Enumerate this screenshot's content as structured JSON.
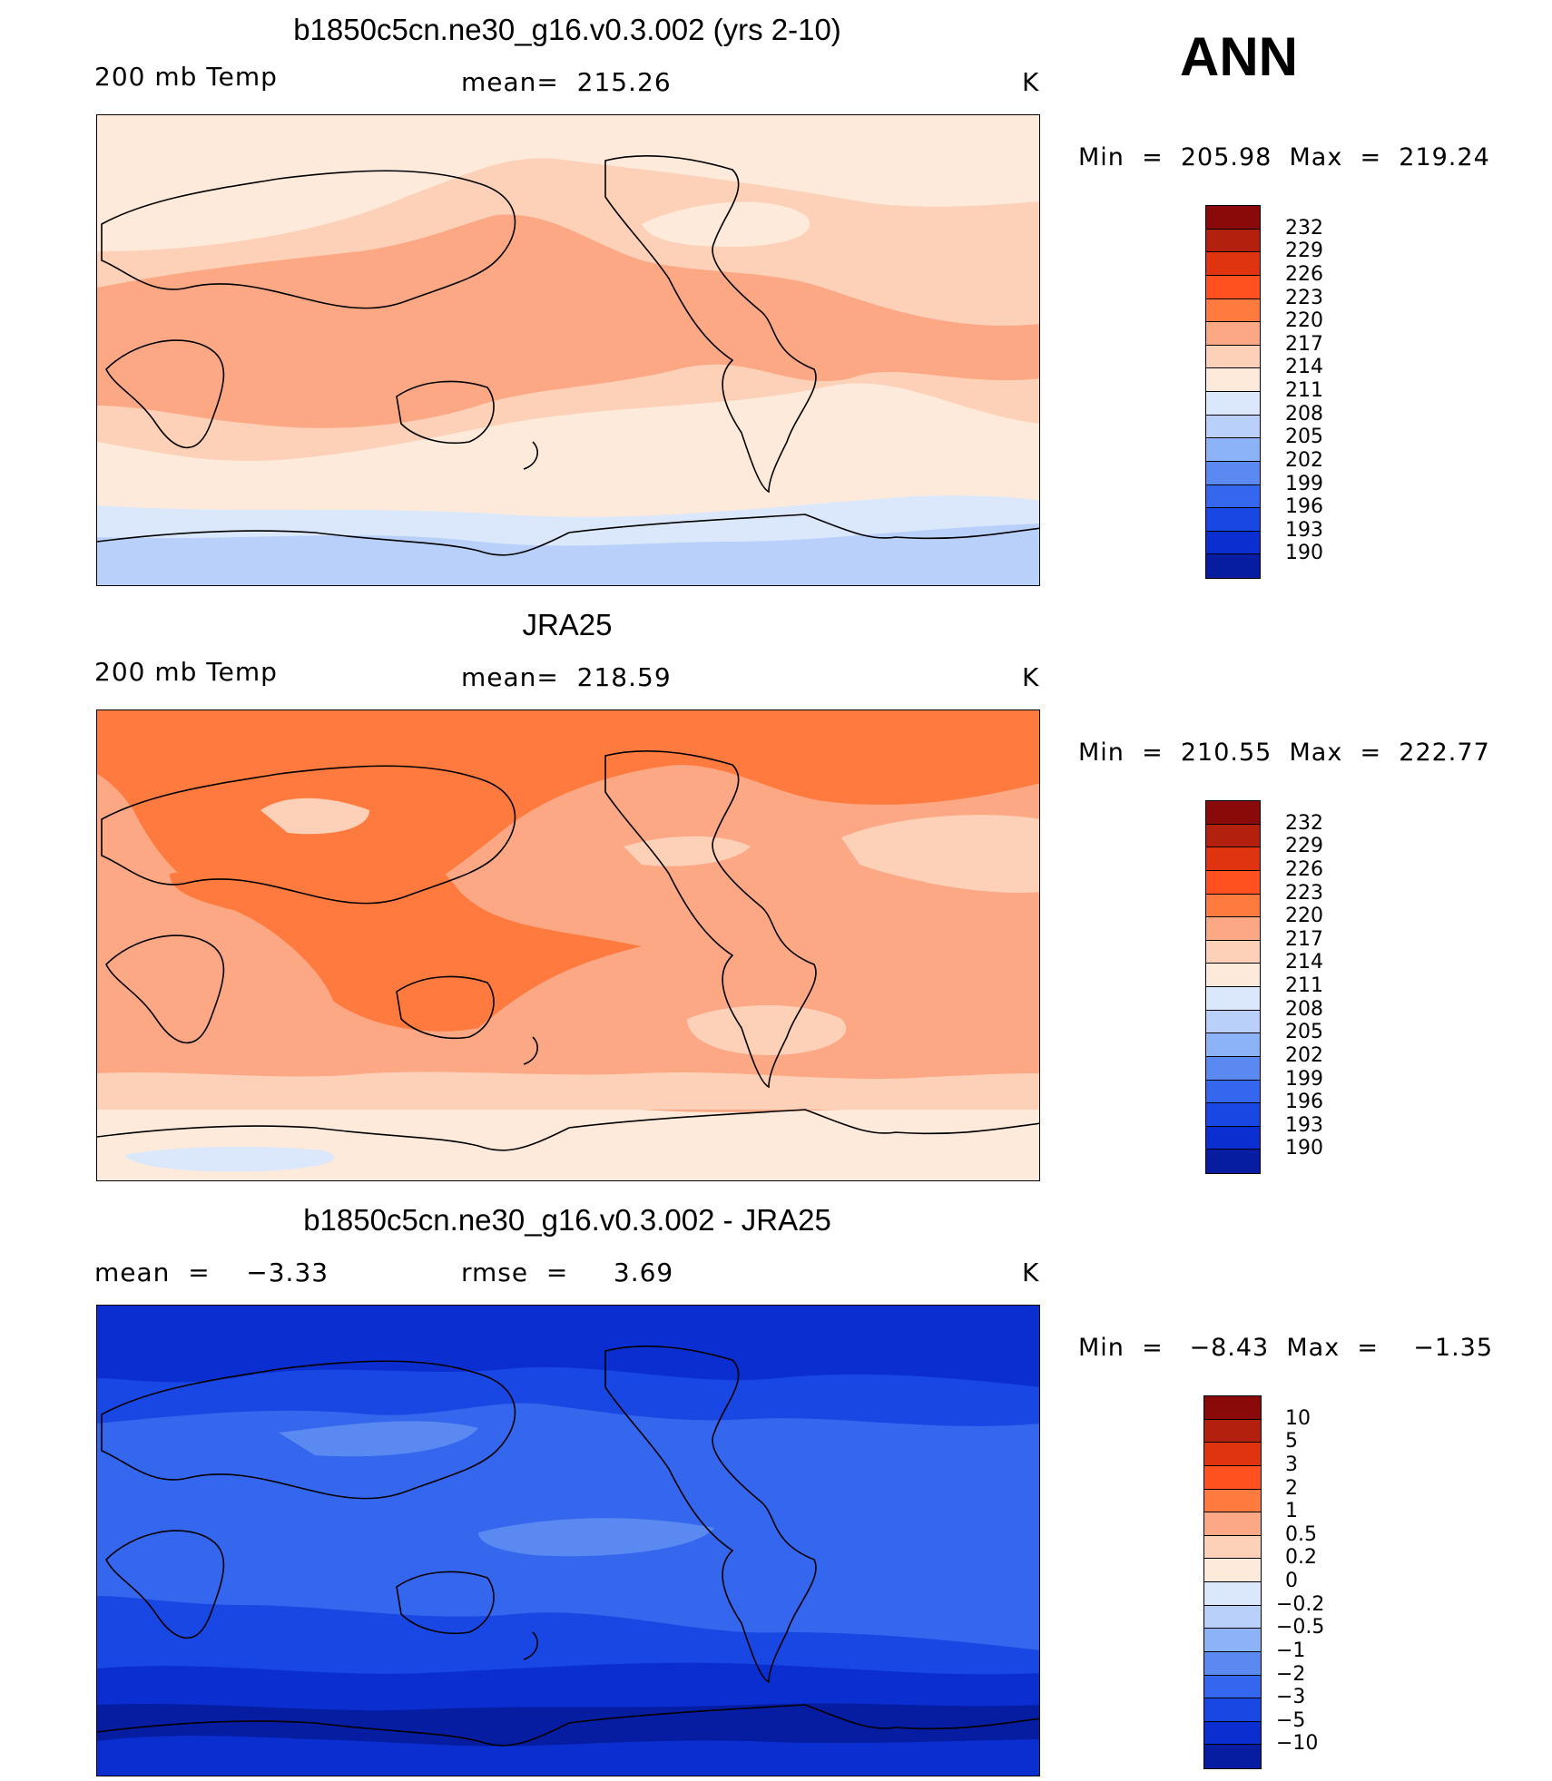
{
  "season": "ANN",
  "palette_abs": [
    "#8a0a0a",
    "#b3200d",
    "#e0330f",
    "#ff5020",
    "#ff7a3f",
    "#fca884",
    "#fdd0b8",
    "#fdeadb",
    "#dbe8fb",
    "#b9d0fa",
    "#8cb2f8",
    "#5a89f1",
    "#3566ee",
    "#1947e4",
    "#0a2ecf",
    "#061ca1"
  ],
  "palette_diff": [
    "#8a0a0a",
    "#b3200d",
    "#e0330f",
    "#ff5020",
    "#ff7a3f",
    "#fca884",
    "#fdd0b8",
    "#fdeadb",
    "#dbe8fb",
    "#b9d0fa",
    "#8cb2f8",
    "#5a89f1",
    "#3566ee",
    "#1947e4",
    "#0a2ecf",
    "#061ca1"
  ],
  "panels": [
    {
      "title": "b1850c5cn.ne30_g16.v0.3.002 (yrs 2-10)",
      "left_label": "200 mb Temp",
      "center_label": "mean=  215.26",
      "units": "K",
      "minmax": "Min  =  205.98  Max  =  219.24",
      "scale": [
        "232",
        "229",
        "226",
        "223",
        "220",
        "217",
        "214",
        "211",
        "208",
        "205",
        "202",
        "199",
        "196",
        "193",
        "190"
      ]
    },
    {
      "title": "JRA25",
      "left_label": "200 mb Temp",
      "center_label": "mean=  218.59",
      "units": "K",
      "minmax": "Min  =  210.55  Max  =  222.77",
      "scale": [
        "232",
        "229",
        "226",
        "223",
        "220",
        "217",
        "214",
        "211",
        "208",
        "205",
        "202",
        "199",
        "196",
        "193",
        "190"
      ]
    },
    {
      "title": "b1850c5cn.ne30_g16.v0.3.002 - JRA25",
      "left_label": "mean  =    −3.33",
      "center_label": "rmse  =     3.69",
      "units": "K",
      "minmax": "Min  =   −8.43  Max  =    −1.35",
      "scale": [
        "10",
        "5",
        "3",
        "2",
        "1",
        "0.5",
        "0.2",
        "0",
        "−0.2",
        "−0.5",
        "−1",
        "−2",
        "−3",
        "−5",
        "−10"
      ]
    }
  ]
}
